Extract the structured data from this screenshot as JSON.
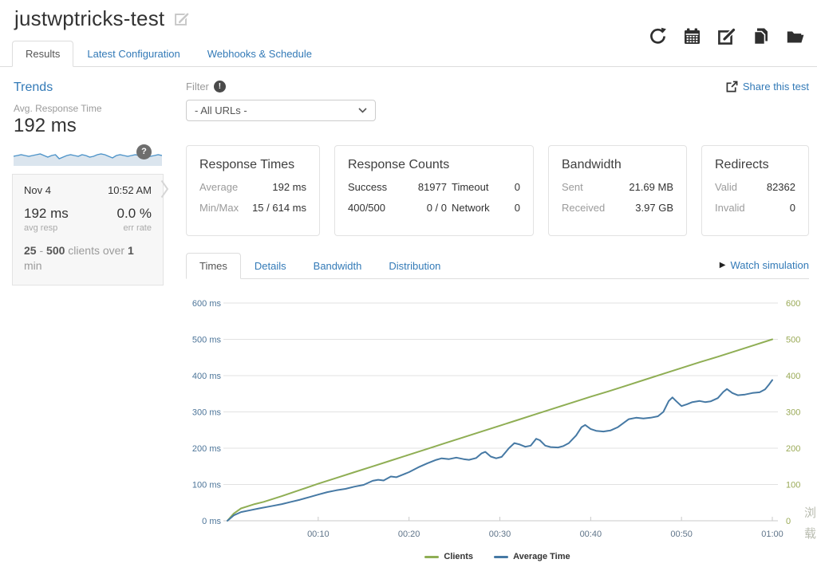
{
  "header": {
    "title": "justwptricks-test",
    "action_icons": [
      "refresh",
      "calendar",
      "edit",
      "copy",
      "open-folder"
    ]
  },
  "nav_tabs": {
    "items": [
      {
        "label": "Results",
        "active": true
      },
      {
        "label": "Latest Configuration",
        "active": false
      },
      {
        "label": "Webhooks & Schedule",
        "active": false
      }
    ]
  },
  "sidebar": {
    "trends": {
      "title": "Trends",
      "metric_label": "Avg. Response Time",
      "metric_value": "192 ms",
      "help_badge": "?",
      "sparkline": [
        11,
        10,
        9,
        10,
        11,
        10,
        9,
        8,
        10,
        12,
        10,
        9,
        14,
        12,
        10,
        9,
        10,
        11,
        9,
        10,
        12,
        11,
        9,
        8,
        9,
        11,
        13,
        10,
        9,
        10,
        11,
        10,
        9,
        10,
        11,
        12,
        11,
        10,
        9,
        10
      ],
      "sparkline_line_color": "#4e94c9",
      "sparkline_fill_color": "#dbe5ee"
    },
    "run": {
      "date": "Nov 4",
      "time": "10:52 AM",
      "avg_value": "192 ms",
      "avg_label": "avg resp",
      "err_value": "0.0 %",
      "err_label": "err rate",
      "clients_from": "25",
      "clients_sep": "-",
      "clients_to": "500",
      "clients_text": "clients over",
      "clients_duration": "1",
      "clients_unit": "min"
    }
  },
  "toolbar": {
    "filter_label": "Filter",
    "filter_badge": "!",
    "filter_value": "- All URLs -",
    "share_label": "Share this test"
  },
  "summary_cards": [
    {
      "title": "Response Times",
      "rows": [
        {
          "label": "Average",
          "value": "192 ms"
        },
        {
          "label": "Min/Max",
          "value": "15 / 614 ms"
        }
      ]
    },
    {
      "title": "Response Counts",
      "rows": [
        {
          "label": "Success",
          "value": "81977",
          "label2": "Timeout",
          "value2": "0"
        },
        {
          "label": "400/500",
          "value": "0 / 0",
          "label2": "Network",
          "value2": "0"
        }
      ]
    },
    {
      "title": "Bandwidth",
      "rows": [
        {
          "label": "Sent",
          "value": "21.69 MB"
        },
        {
          "label": "Received",
          "value": "3.97 GB"
        }
      ]
    },
    {
      "title": "Redirects",
      "rows": [
        {
          "label": "Valid",
          "value": "82362"
        },
        {
          "label": "Invalid",
          "value": "0"
        }
      ]
    }
  ],
  "chart_tabs": {
    "items": [
      {
        "label": "Times",
        "active": true
      },
      {
        "label": "Details",
        "active": false
      },
      {
        "label": "Bandwidth",
        "active": false
      },
      {
        "label": "Distribution",
        "active": false
      }
    ],
    "watch_label": "Watch simulation"
  },
  "chart_data": {
    "type": "line",
    "title": "",
    "xlabel": "",
    "ylabel_left": "ms",
    "x_unit": "mm:ss",
    "x_range_seconds": [
      0,
      60
    ],
    "x_ticks": [
      {
        "t": 10,
        "label": "00:10"
      },
      {
        "t": 20,
        "label": "00:20"
      },
      {
        "t": 30,
        "label": "00:30"
      },
      {
        "t": 40,
        "label": "00:40"
      },
      {
        "t": 50,
        "label": "00:50"
      },
      {
        "t": 60,
        "label": "01:00"
      }
    ],
    "y_left": {
      "range": [
        0,
        600
      ],
      "labels": [
        "0 ms",
        "100 ms",
        "200 ms",
        "300 ms",
        "400 ms",
        "500 ms",
        "600 ms"
      ]
    },
    "y_right": {
      "range": [
        0,
        600
      ],
      "labels": [
        "0",
        "100",
        "200",
        "300",
        "400",
        "500",
        "600"
      ]
    },
    "grid": true,
    "legend_position": "bottom",
    "series": [
      {
        "name": "Clients",
        "color": "#8fae54",
        "points": [
          [
            0,
            0
          ],
          [
            0.7,
            20
          ],
          [
            1.5,
            34
          ],
          [
            3,
            46
          ],
          [
            4,
            52
          ],
          [
            6,
            68
          ],
          [
            8,
            85
          ],
          [
            10,
            102
          ],
          [
            12,
            118
          ],
          [
            14,
            134
          ],
          [
            16,
            150
          ],
          [
            18,
            166
          ],
          [
            20,
            182
          ],
          [
            22,
            198
          ],
          [
            24,
            214
          ],
          [
            26,
            230
          ],
          [
            28,
            246
          ],
          [
            30,
            262
          ],
          [
            32,
            278
          ],
          [
            34,
            294
          ],
          [
            36,
            310
          ],
          [
            38,
            326
          ],
          [
            40,
            342
          ],
          [
            42,
            357
          ],
          [
            44,
            373
          ],
          [
            46,
            389
          ],
          [
            48,
            405
          ],
          [
            50,
            421
          ],
          [
            52,
            437
          ],
          [
            54,
            452
          ],
          [
            56,
            468
          ],
          [
            58,
            484
          ],
          [
            60,
            500
          ]
        ]
      },
      {
        "name": "Average Time",
        "color": "#4679a4",
        "points": [
          [
            0,
            0
          ],
          [
            0.7,
            15
          ],
          [
            1.5,
            24
          ],
          [
            2.5,
            29
          ],
          [
            3.5,
            34
          ],
          [
            5,
            41
          ],
          [
            6,
            46
          ],
          [
            7,
            52
          ],
          [
            8,
            58
          ],
          [
            9,
            65
          ],
          [
            10,
            72
          ],
          [
            11,
            79
          ],
          [
            12,
            84
          ],
          [
            13,
            88
          ],
          [
            14,
            94
          ],
          [
            15,
            99
          ],
          [
            16,
            110
          ],
          [
            16.6,
            113
          ],
          [
            17.2,
            111
          ],
          [
            18,
            122
          ],
          [
            18.6,
            120
          ],
          [
            19.4,
            128
          ],
          [
            20,
            134
          ],
          [
            21,
            147
          ],
          [
            22,
            158
          ],
          [
            23,
            168
          ],
          [
            23.6,
            172
          ],
          [
            24.4,
            170
          ],
          [
            25.2,
            174
          ],
          [
            26,
            170
          ],
          [
            26.6,
            168
          ],
          [
            27.4,
            173
          ],
          [
            28,
            186
          ],
          [
            28.4,
            190
          ],
          [
            29,
            177
          ],
          [
            29.6,
            172
          ],
          [
            30.2,
            176
          ],
          [
            31,
            200
          ],
          [
            31.6,
            214
          ],
          [
            32.2,
            210
          ],
          [
            32.8,
            204
          ],
          [
            33.4,
            207
          ],
          [
            34,
            226
          ],
          [
            34.4,
            222
          ],
          [
            35,
            207
          ],
          [
            35.6,
            203
          ],
          [
            36.4,
            202
          ],
          [
            37,
            206
          ],
          [
            37.6,
            214
          ],
          [
            38.4,
            235
          ],
          [
            39,
            258
          ],
          [
            39.4,
            264
          ],
          [
            40,
            253
          ],
          [
            40.6,
            248
          ],
          [
            41.4,
            246
          ],
          [
            42.2,
            249
          ],
          [
            43,
            258
          ],
          [
            43.6,
            269
          ],
          [
            44.2,
            280
          ],
          [
            45,
            284
          ],
          [
            45.8,
            282
          ],
          [
            46.6,
            284
          ],
          [
            47.4,
            288
          ],
          [
            48,
            300
          ],
          [
            48.6,
            330
          ],
          [
            49,
            340
          ],
          [
            49.4,
            330
          ],
          [
            50,
            316
          ],
          [
            50.6,
            321
          ],
          [
            51.2,
            327
          ],
          [
            52,
            330
          ],
          [
            52.6,
            327
          ],
          [
            53.2,
            329
          ],
          [
            54,
            338
          ],
          [
            54.6,
            355
          ],
          [
            55,
            363
          ],
          [
            55.6,
            352
          ],
          [
            56.2,
            346
          ],
          [
            57,
            348
          ],
          [
            57.8,
            352
          ],
          [
            58.6,
            354
          ],
          [
            59.2,
            362
          ],
          [
            59.6,
            374
          ],
          [
            60,
            388
          ]
        ]
      }
    ]
  },
  "watermark": {
    "chars": [
      "浏",
      "载"
    ]
  }
}
